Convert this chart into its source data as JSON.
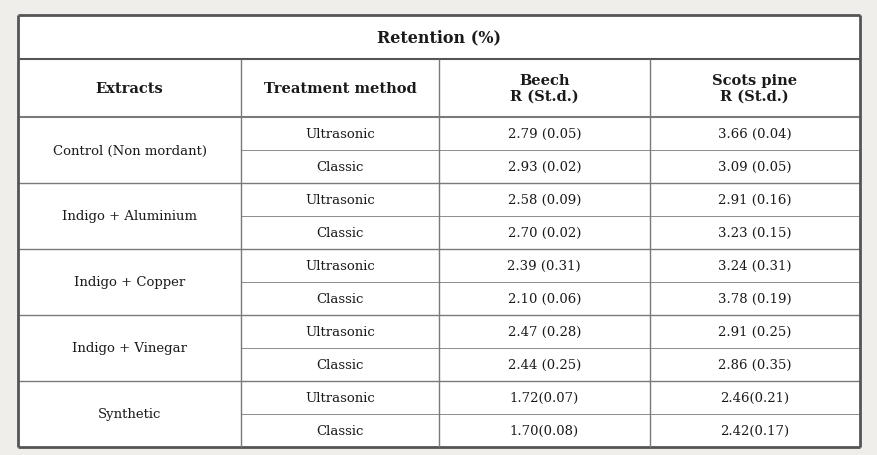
{
  "title": "Retention (%)",
  "col_headers": [
    "Extracts",
    "Treatment method",
    "Beech\nR (St.d.)",
    "Scots pine\nR (St.d.)"
  ],
  "row_groups": [
    {
      "extract": "Control (Non mordant)",
      "rows": [
        [
          "Ultrasonic",
          "2.79 (0.05)",
          "3.66 (0.04)"
        ],
        [
          "Classic",
          "2.93 (0.02)",
          "3.09 (0.05)"
        ]
      ]
    },
    {
      "extract": "Indigo + Aluminium",
      "rows": [
        [
          "Ultrasonic",
          "2.58 (0.09)",
          "2.91 (0.16)"
        ],
        [
          "Classic",
          "2.70 (0.02)",
          "3.23 (0.15)"
        ]
      ]
    },
    {
      "extract": "Indigo + Copper",
      "rows": [
        [
          "Ultrasonic",
          "2.39 (0.31)",
          "3.24 (0.31)"
        ],
        [
          "Classic",
          "2.10 (0.06)",
          "3.78 (0.19)"
        ]
      ]
    },
    {
      "extract": "Indigo + Vinegar",
      "rows": [
        [
          "Ultrasonic",
          "2.47 (0.28)",
          "2.91 (0.25)"
        ],
        [
          "Classic",
          "2.44 (0.25)",
          "2.86 (0.35)"
        ]
      ]
    },
    {
      "extract": "Synthetic",
      "rows": [
        [
          "Ultrasonic",
          "1.72(0.07)",
          "2.46(0.21)"
        ],
        [
          "Classic",
          "1.70(0.08)",
          "2.42(0.17)"
        ]
      ]
    }
  ],
  "background_color": "#f0eeeb",
  "line_color": "#7a7a7a",
  "text_color": "#1a1a1a",
  "outer_line_color": "#555555",
  "font_size": 9.5,
  "header_font_size": 10.5,
  "title_font_size": 11.5,
  "fig_width": 8.78,
  "fig_height": 4.56,
  "dpi": 100
}
